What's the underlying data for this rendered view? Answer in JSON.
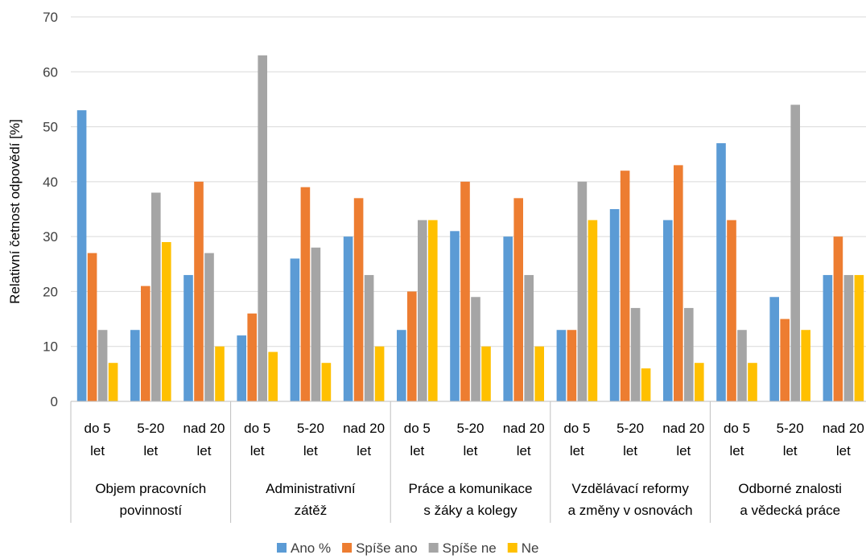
{
  "chart_data": {
    "type": "bar",
    "ylabel": "Relativní četnost odpovědí [%]",
    "xlabel": "",
    "ylim": [
      0,
      70
    ],
    "yticks": [
      0,
      10,
      20,
      30,
      40,
      50,
      60,
      70
    ],
    "grid": true,
    "legend_position": "bottom",
    "groups": [
      "Objem pracovních povinností",
      "Administrativní zátěž",
      "Práce a komunikace s žáky a kolegy",
      "Vzdělávací reformy a změny v osnovách",
      "Odborné znalosti a vědecká práce"
    ],
    "subcategories": [
      "do 5 let",
      "5-20 let",
      "nad 20 let"
    ],
    "series": [
      {
        "name": "Ano %",
        "color": "#5B9BD5",
        "values": [
          53,
          13,
          23,
          12,
          26,
          30,
          13,
          31,
          30,
          13,
          35,
          33,
          47,
          19,
          23
        ]
      },
      {
        "name": "Spíše ano",
        "color": "#ED7D31",
        "values": [
          27,
          21,
          40,
          16,
          39,
          37,
          20,
          40,
          37,
          13,
          42,
          43,
          33,
          15,
          30
        ]
      },
      {
        "name": "Spíše ne",
        "color": "#A5A5A5",
        "values": [
          13,
          38,
          27,
          63,
          28,
          23,
          33,
          19,
          23,
          40,
          17,
          17,
          13,
          54,
          23
        ]
      },
      {
        "name": "Ne",
        "color": "#FFC000",
        "values": [
          7,
          29,
          10,
          9,
          7,
          10,
          33,
          10,
          10,
          33,
          6,
          7,
          7,
          13,
          23
        ]
      }
    ]
  }
}
